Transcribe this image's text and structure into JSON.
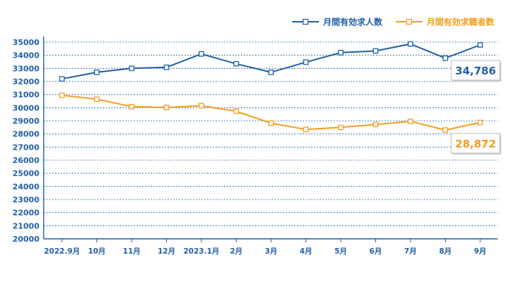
{
  "chart_data": {
    "type": "line",
    "categories": [
      "2022.9月",
      "10月",
      "11月",
      "12月",
      "2023.1月",
      "2月",
      "3月",
      "4月",
      "5月",
      "6月",
      "7月",
      "8月",
      "9月"
    ],
    "ylim": [
      20000,
      35000
    ],
    "yticks": [
      20000,
      21000,
      22000,
      23000,
      24000,
      25000,
      26000,
      27000,
      28000,
      29000,
      30000,
      31000,
      32000,
      33000,
      34000,
      35000
    ],
    "grid": true,
    "legend_position": "top-right",
    "series": [
      {
        "name": "月間有効求人数",
        "color": "#1f5fa6",
        "values": [
          32200,
          32700,
          33000,
          33080,
          34100,
          33350,
          32700,
          33480,
          34200,
          34330,
          34860,
          33780,
          34786
        ],
        "callout": "34,786"
      },
      {
        "name": "月間有効求職者数",
        "color": "#f39c1f",
        "values": [
          30950,
          30650,
          30080,
          30020,
          30150,
          29730,
          28820,
          28340,
          28500,
          28720,
          28960,
          28300,
          28872
        ],
        "callout": "28,872"
      }
    ]
  }
}
